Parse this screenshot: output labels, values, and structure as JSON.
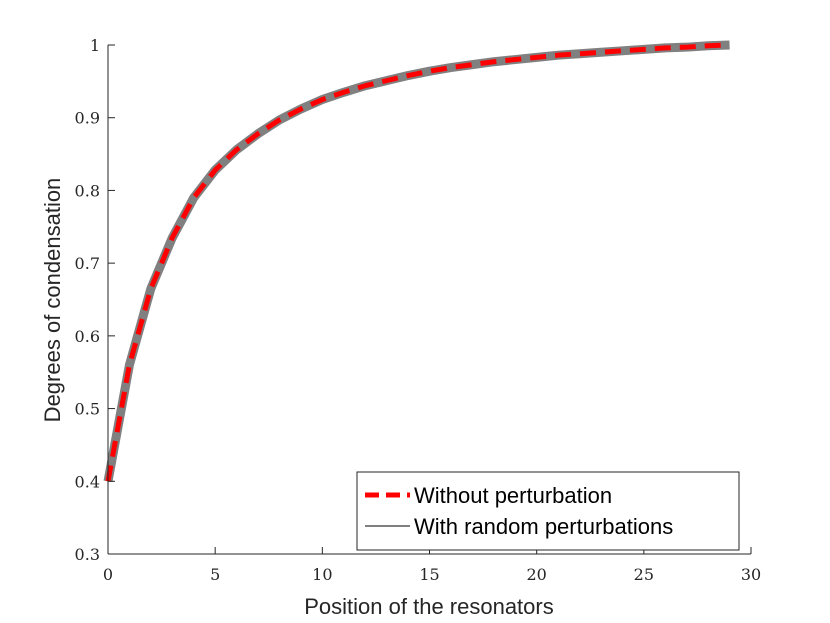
{
  "chart_data": {
    "type": "line",
    "xlabel": "Position of the resonators",
    "ylabel": "Degrees of condensation",
    "xlim": [
      0,
      30
    ],
    "ylim": [
      0.3,
      1
    ],
    "x_ticks": [
      "0",
      "5",
      "10",
      "15",
      "20",
      "25",
      "30"
    ],
    "y_ticks": [
      "0.3",
      "0.4",
      "0.5",
      "0.6",
      "0.7",
      "0.8",
      "0.9",
      "1"
    ],
    "grid": false,
    "legend_position": "bottom-right",
    "x": [
      0,
      1,
      2,
      3,
      4,
      5,
      6,
      7,
      8,
      9,
      10,
      11,
      12,
      13,
      14,
      15,
      16,
      17,
      18,
      19,
      20,
      21,
      22,
      23,
      24,
      25,
      26,
      27,
      28,
      29
    ],
    "series": [
      {
        "name": "Without perturbation",
        "style": "dashed",
        "color": "#ff0000",
        "values": [
          0.4,
          0.56,
          0.665,
          0.735,
          0.79,
          0.828,
          0.856,
          0.878,
          0.897,
          0.912,
          0.925,
          0.935,
          0.944,
          0.951,
          0.958,
          0.964,
          0.969,
          0.973,
          0.977,
          0.98,
          0.983,
          0.986,
          0.988,
          0.99,
          0.992,
          0.994,
          0.996,
          0.997,
          0.999,
          1.0
        ]
      },
      {
        "name": "With random perturbations",
        "style": "solid",
        "color": "#808080",
        "values": [
          0.4,
          0.56,
          0.665,
          0.735,
          0.79,
          0.828,
          0.856,
          0.878,
          0.897,
          0.912,
          0.925,
          0.935,
          0.944,
          0.951,
          0.958,
          0.964,
          0.969,
          0.973,
          0.977,
          0.98,
          0.983,
          0.986,
          0.988,
          0.99,
          0.992,
          0.994,
          0.996,
          0.997,
          0.999,
          1.0
        ]
      }
    ]
  }
}
